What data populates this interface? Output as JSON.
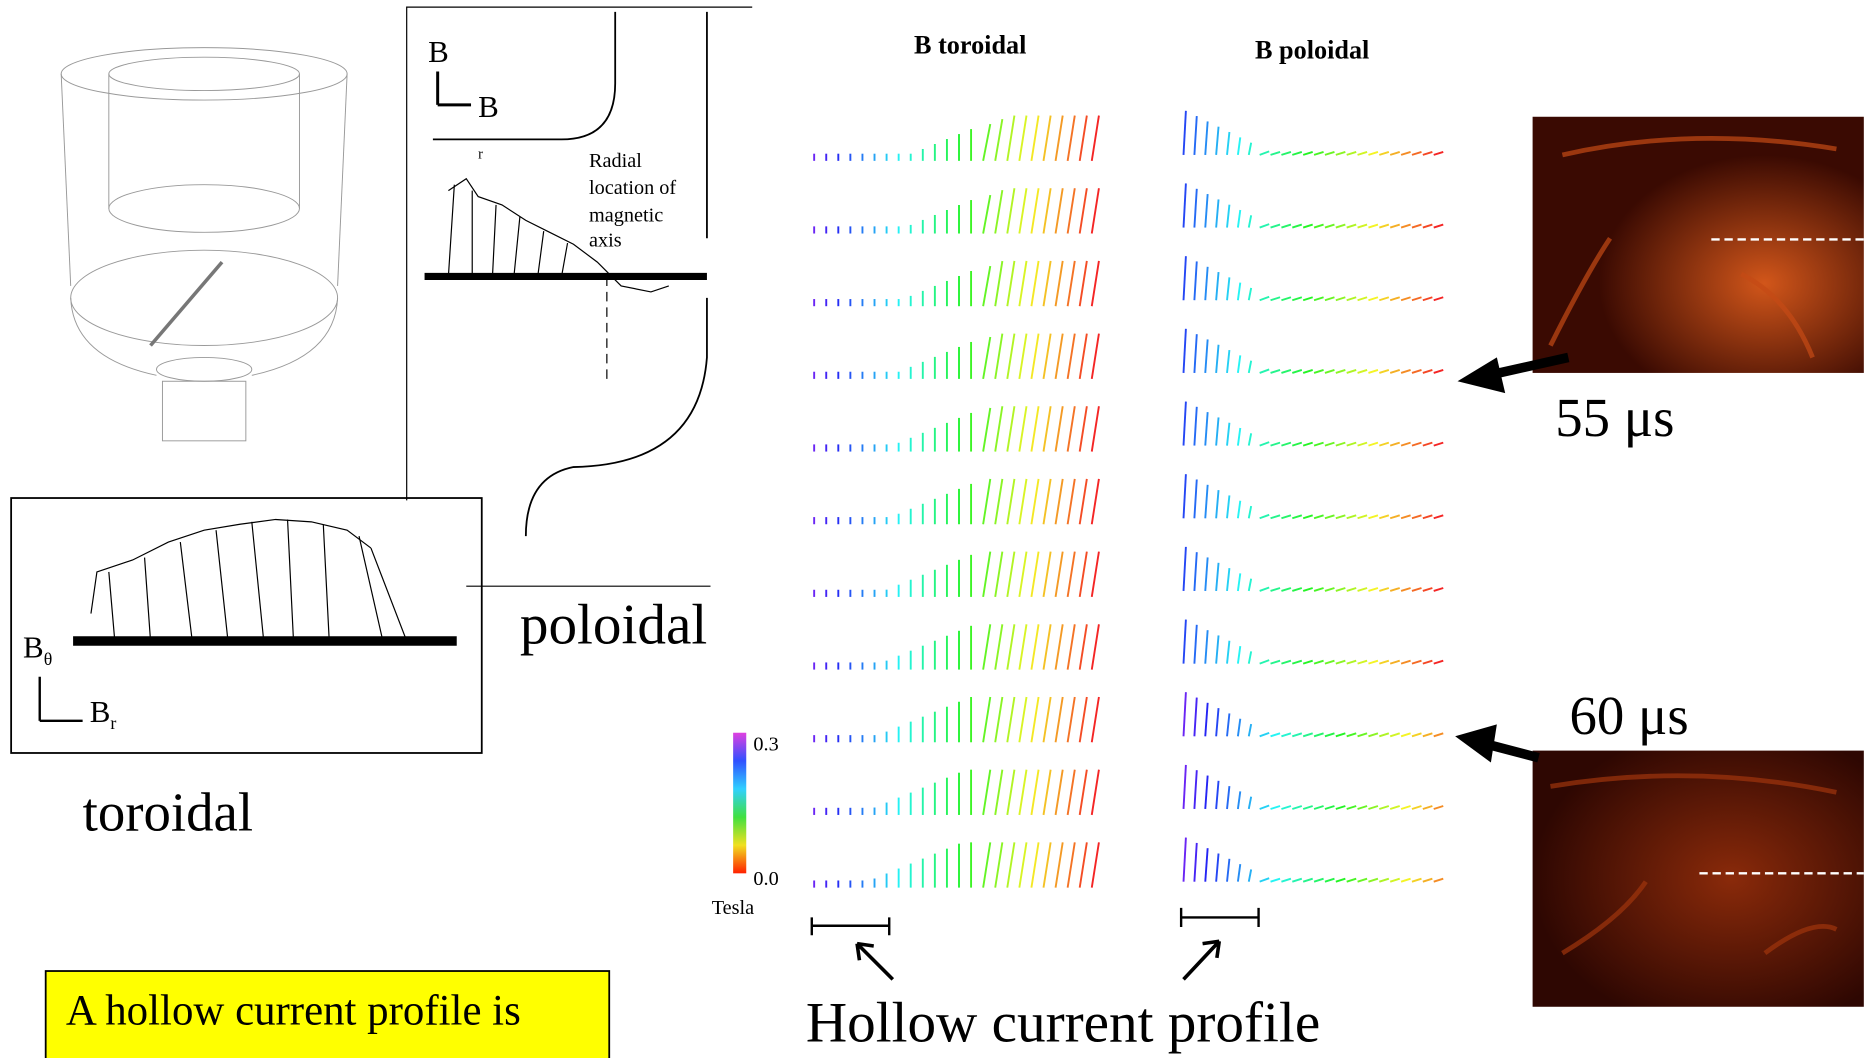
{
  "figure": {
    "col_titles": [
      "B toroidal",
      "B poloidal"
    ],
    "colorbar": {
      "max": "0.3",
      "min": "0.0",
      "unit": "Tesla"
    },
    "times": [
      "55 μs",
      "60 μs"
    ],
    "caption": "Hollow current profile"
  },
  "inset_poloidal": {
    "axis_up": "B",
    "axis_right": "B",
    "r_label": "r",
    "note": [
      "Radial",
      "location of",
      "magnetic",
      "axis"
    ],
    "label": "poloidal"
  },
  "inset_toroidal": {
    "axis_up": "B",
    "axis_up_sub": "θ",
    "axis_right": "B",
    "axis_right_sub": "r",
    "label": "toroidal"
  },
  "callout": "A hollow current profile is"
}
